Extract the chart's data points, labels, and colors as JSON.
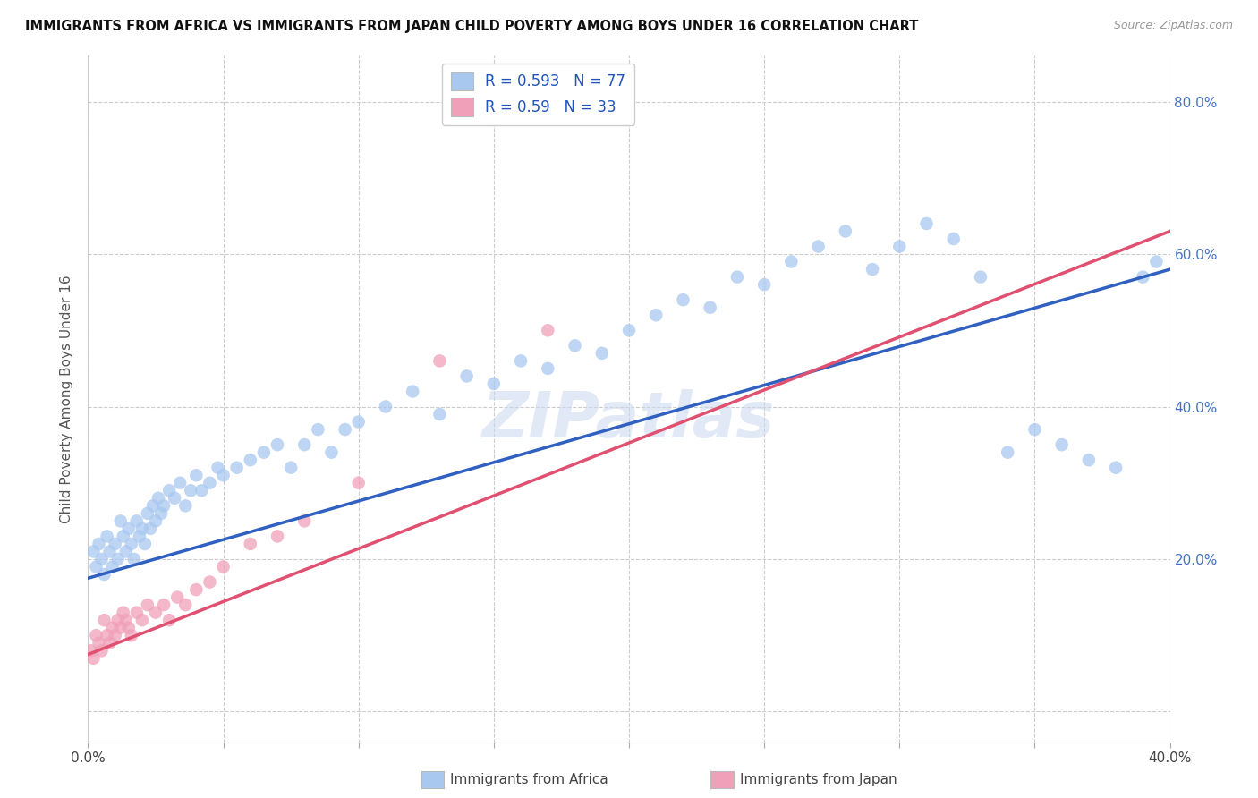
{
  "title": "IMMIGRANTS FROM AFRICA VS IMMIGRANTS FROM JAPAN CHILD POVERTY AMONG BOYS UNDER 16 CORRELATION CHART",
  "source": "Source: ZipAtlas.com",
  "ylabel": "Child Poverty Among Boys Under 16",
  "watermark": "ZIPatlas",
  "africa_R": 0.593,
  "africa_N": 77,
  "japan_R": 0.59,
  "japan_N": 33,
  "xlim": [
    0.0,
    0.4
  ],
  "ylim": [
    -0.04,
    0.86
  ],
  "africa_color": "#a8c8f0",
  "japan_color": "#f0a0b8",
  "africa_line_color": "#3060c0",
  "japan_line_color": "#e05070",
  "africa_scatter_x": [
    0.002,
    0.003,
    0.004,
    0.005,
    0.006,
    0.007,
    0.008,
    0.009,
    0.01,
    0.011,
    0.012,
    0.013,
    0.014,
    0.015,
    0.016,
    0.017,
    0.018,
    0.019,
    0.02,
    0.021,
    0.022,
    0.023,
    0.024,
    0.025,
    0.026,
    0.027,
    0.028,
    0.03,
    0.032,
    0.034,
    0.036,
    0.038,
    0.04,
    0.042,
    0.045,
    0.048,
    0.05,
    0.055,
    0.06,
    0.065,
    0.07,
    0.075,
    0.08,
    0.085,
    0.09,
    0.095,
    0.1,
    0.11,
    0.12,
    0.13,
    0.14,
    0.15,
    0.16,
    0.17,
    0.18,
    0.19,
    0.2,
    0.21,
    0.22,
    0.23,
    0.24,
    0.25,
    0.26,
    0.27,
    0.28,
    0.29,
    0.3,
    0.31,
    0.32,
    0.33,
    0.34,
    0.35,
    0.36,
    0.37,
    0.38,
    0.39,
    0.395
  ],
  "africa_scatter_y": [
    0.21,
    0.19,
    0.22,
    0.2,
    0.18,
    0.23,
    0.21,
    0.19,
    0.22,
    0.2,
    0.25,
    0.23,
    0.21,
    0.24,
    0.22,
    0.2,
    0.25,
    0.23,
    0.24,
    0.22,
    0.26,
    0.24,
    0.27,
    0.25,
    0.28,
    0.26,
    0.27,
    0.29,
    0.28,
    0.3,
    0.27,
    0.29,
    0.31,
    0.29,
    0.3,
    0.32,
    0.31,
    0.32,
    0.33,
    0.34,
    0.35,
    0.32,
    0.35,
    0.37,
    0.34,
    0.37,
    0.38,
    0.4,
    0.42,
    0.39,
    0.44,
    0.43,
    0.46,
    0.45,
    0.48,
    0.47,
    0.5,
    0.52,
    0.54,
    0.53,
    0.57,
    0.56,
    0.59,
    0.61,
    0.63,
    0.58,
    0.61,
    0.64,
    0.62,
    0.57,
    0.34,
    0.37,
    0.35,
    0.33,
    0.32,
    0.57,
    0.59
  ],
  "japan_scatter_x": [
    0.001,
    0.002,
    0.003,
    0.004,
    0.005,
    0.006,
    0.007,
    0.008,
    0.009,
    0.01,
    0.011,
    0.012,
    0.013,
    0.014,
    0.015,
    0.016,
    0.018,
    0.02,
    0.022,
    0.025,
    0.028,
    0.03,
    0.033,
    0.036,
    0.04,
    0.045,
    0.05,
    0.06,
    0.07,
    0.08,
    0.1,
    0.13,
    0.17
  ],
  "japan_scatter_y": [
    0.08,
    0.07,
    0.1,
    0.09,
    0.08,
    0.12,
    0.1,
    0.09,
    0.11,
    0.1,
    0.12,
    0.11,
    0.13,
    0.12,
    0.11,
    0.1,
    0.13,
    0.12,
    0.14,
    0.13,
    0.14,
    0.12,
    0.15,
    0.14,
    0.16,
    0.17,
    0.19,
    0.22,
    0.23,
    0.25,
    0.3,
    0.46,
    0.5
  ],
  "africa_line_x0": 0.0,
  "africa_line_y0": 0.175,
  "africa_line_x1": 0.4,
  "africa_line_y1": 0.58,
  "japan_line_x0": 0.0,
  "japan_line_y0": 0.075,
  "japan_line_x1": 0.4,
  "japan_line_y1": 0.63
}
